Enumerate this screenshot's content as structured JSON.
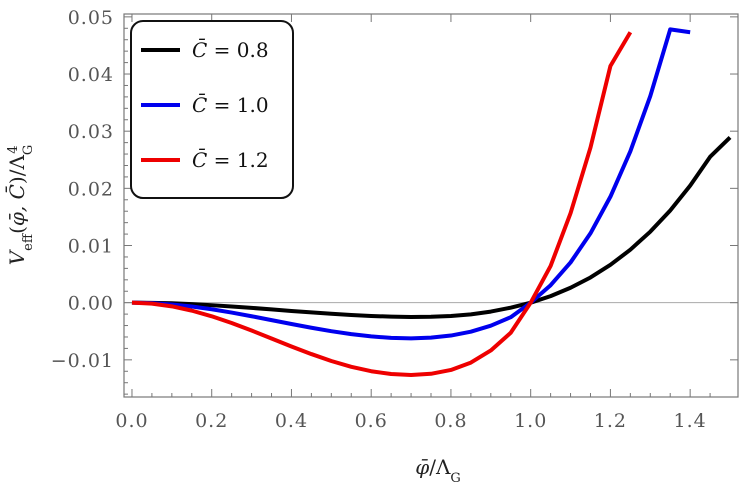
{
  "chart_data": {
    "type": "line",
    "xlabel": "φ̄/Λ_G",
    "ylabel": "V_eff(φ̄, C̄)/Λ_G^4",
    "xlim": [
      -0.02,
      1.52
    ],
    "ylim": [
      -0.0165,
      0.0505
    ],
    "x_ticks": [
      "0.0",
      "0.2",
      "0.4",
      "0.6",
      "0.8",
      "1.0",
      "1.2",
      "1.4"
    ],
    "x_tick_values": [
      0.0,
      0.2,
      0.4,
      0.6,
      0.8,
      1.0,
      1.2,
      1.4
    ],
    "y_ticks": [
      "−0.01",
      "0.00",
      "0.01",
      "0.02",
      "0.03",
      "0.04",
      "0.05"
    ],
    "y_tick_values": [
      -0.01,
      0.0,
      0.01,
      0.02,
      0.03,
      0.04,
      0.05
    ],
    "zero_line": true,
    "legend_position": "top-left",
    "series": [
      {
        "name": "C̄ = 0.8",
        "label": "0.8",
        "color": "#000000",
        "x": [
          0.0,
          0.05,
          0.1,
          0.15,
          0.2,
          0.25,
          0.3,
          0.35,
          0.4,
          0.45,
          0.5,
          0.55,
          0.6,
          0.65,
          0.7,
          0.75,
          0.8,
          0.85,
          0.9,
          0.95,
          1.0,
          1.05,
          1.1,
          1.15,
          1.2,
          1.25,
          1.3,
          1.35,
          1.4,
          1.45,
          1.5
        ],
        "y": [
          0.0,
          -3e-05,
          -0.00011,
          -0.00025,
          -0.00044,
          -0.00066,
          -0.00091,
          -0.00118,
          -0.00145,
          -0.0017,
          -0.00194,
          -0.00215,
          -0.00232,
          -0.00244,
          -0.0025,
          -0.00247,
          -0.00233,
          -0.00204,
          -0.00156,
          -0.00087,
          0.0,
          0.00115,
          0.00261,
          0.00441,
          0.00662,
          0.00927,
          0.01242,
          0.01613,
          0.02048,
          0.02551,
          0.0289
        ]
      },
      {
        "name": "C̄ = 1.0",
        "label": "1.0",
        "color": "#0000ee",
        "x": [
          0.0,
          0.05,
          0.1,
          0.15,
          0.2,
          0.25,
          0.3,
          0.35,
          0.4,
          0.45,
          0.5,
          0.55,
          0.6,
          0.65,
          0.7,
          0.75,
          0.8,
          0.85,
          0.9,
          0.95,
          1.0,
          1.05,
          1.1,
          1.15,
          1.2,
          1.25,
          1.3,
          1.35,
          1.4
        ],
        "y": [
          0.0,
          -8e-05,
          -0.00031,
          -0.00067,
          -0.00115,
          -0.00173,
          -0.00237,
          -0.00305,
          -0.00373,
          -0.00439,
          -0.00499,
          -0.0055,
          -0.0059,
          -0.00616,
          -0.00624,
          -0.00612,
          -0.00575,
          -0.00508,
          -0.00403,
          -0.00254,
          0.0,
          0.00305,
          0.00704,
          0.01214,
          0.01855,
          0.02648,
          0.03615,
          0.04781,
          0.0473
        ]
      },
      {
        "name": "C̄ = 1.2",
        "label": "1.2",
        "color": "#ee0000",
        "x": [
          0.0,
          0.05,
          0.1,
          0.15,
          0.2,
          0.25,
          0.3,
          0.35,
          0.4,
          0.45,
          0.5,
          0.55,
          0.6,
          0.65,
          0.7,
          0.75,
          0.8,
          0.85,
          0.9,
          0.95,
          1.0,
          1.05,
          1.1,
          1.15,
          1.2,
          1.25
        ],
        "y": [
          0.0,
          -0.00017,
          -0.00064,
          -0.00139,
          -0.00238,
          -0.00356,
          -0.00487,
          -0.00626,
          -0.00766,
          -0.00899,
          -0.0102,
          -0.01122,
          -0.01199,
          -0.01248,
          -0.01265,
          -0.01244,
          -0.01177,
          -0.01048,
          -0.00836,
          -0.00526,
          0.0,
          0.00642,
          0.01565,
          0.02714,
          0.0414,
          0.0473
        ]
      }
    ]
  }
}
